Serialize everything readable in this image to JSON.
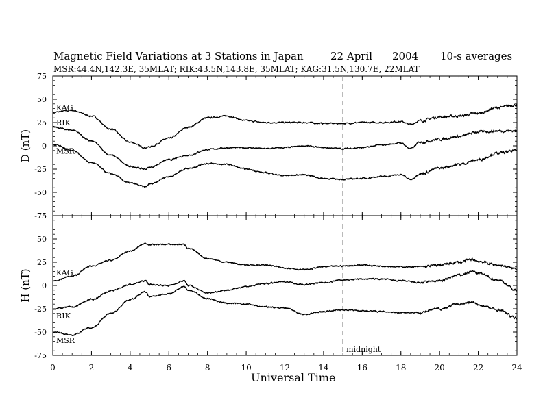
{
  "header": {
    "title": "Magnetic Field Variations at 3 Stations in Japan",
    "date": "22  April",
    "year": "2004",
    "averaging": "10-s averages",
    "stations": "MSR:44.4N,142.3E, 35MLAT;  RIK:43.5N,143.8E, 35MLAT;  KAG:31.5N,130.7E, 22MLAT"
  },
  "chart_data": [
    {
      "type": "line",
      "panel": "top",
      "ylabel": "D (nT)",
      "ylim": [
        -75,
        75
      ],
      "yticks": [
        -75,
        -50,
        -25,
        0,
        25,
        50,
        75
      ],
      "xlim": [
        0,
        24
      ],
      "x": [
        0,
        1,
        2,
        3,
        4,
        4.8,
        5,
        6,
        7,
        8,
        9,
        10,
        11,
        12,
        13,
        14,
        15,
        16,
        17,
        18,
        18.5,
        19,
        20,
        21,
        22,
        23,
        24
      ],
      "series": [
        {
          "name": "KAG",
          "values": [
            36,
            38,
            32,
            18,
            4,
            -2,
            -1,
            8,
            20,
            30,
            32,
            27,
            25,
            25,
            25,
            24,
            24,
            25,
            25,
            26,
            23,
            27,
            31,
            32,
            35,
            41,
            44
          ]
        },
        {
          "name": "RIK",
          "values": [
            20,
            17,
            5,
            -10,
            -22,
            -25,
            -23,
            -15,
            -10,
            -4,
            -2,
            -2,
            -3,
            -2,
            0,
            -2,
            -3,
            -2,
            1,
            3,
            -3,
            4,
            7,
            10,
            15,
            16,
            16
          ]
        },
        {
          "name": "MSR",
          "values": [
            2,
            -5,
            -18,
            -30,
            -40,
            -44,
            -41,
            -33,
            -24,
            -19,
            -20,
            -25,
            -29,
            -32,
            -31,
            -35,
            -36,
            -35,
            -33,
            -31,
            -36,
            -30,
            -24,
            -20,
            -15,
            -8,
            -5
          ]
        }
      ],
      "annotations": [
        "KAG",
        "RIK",
        "MSR"
      ]
    },
    {
      "type": "line",
      "panel": "bottom",
      "ylabel": "H (nT)",
      "ylim": [
        -75,
        75
      ],
      "yticks": [
        -75,
        -50,
        -25,
        0,
        25,
        50,
        75
      ],
      "xlim": [
        0,
        24
      ],
      "x": [
        0,
        1,
        2,
        3,
        4,
        4.8,
        5,
        6,
        6.8,
        7,
        8,
        9,
        10,
        11,
        12,
        13,
        14,
        15,
        16,
        17,
        18,
        19,
        20,
        21,
        21.7,
        22,
        23,
        24
      ],
      "series": [
        {
          "name": "KAG",
          "values": [
            5,
            10,
            21,
            27,
            37,
            45,
            44,
            44,
            44,
            40,
            29,
            25,
            22,
            22,
            19,
            17,
            20,
            21,
            22,
            21,
            20,
            20,
            22,
            25,
            28,
            26,
            22,
            18
          ]
        },
        {
          "name": "RIK",
          "values": [
            -25,
            -23,
            -15,
            -6,
            1,
            5,
            1,
            0,
            5,
            0,
            -8,
            -5,
            -1,
            2,
            4,
            1,
            3,
            6,
            7,
            7,
            5,
            3,
            5,
            11,
            15,
            13,
            6,
            -5
          ]
        },
        {
          "name": "MSR",
          "values": [
            -50,
            -53,
            -45,
            -30,
            -15,
            -7,
            -12,
            -9,
            -1,
            -5,
            -14,
            -19,
            -20,
            -23,
            -24,
            -31,
            -28,
            -26,
            -27,
            -28,
            -29,
            -29,
            -25,
            -20,
            -18,
            -21,
            -26,
            -35
          ]
        }
      ],
      "annotations": [
        "KAG",
        "RIK",
        "MSR"
      ]
    }
  ],
  "shared_axis": {
    "xlabel": "Universal Time",
    "xticks": [
      0,
      2,
      4,
      6,
      8,
      10,
      12,
      14,
      16,
      18,
      20,
      22,
      24
    ],
    "midnight_ut": 15,
    "midnight_label": "midnight"
  }
}
